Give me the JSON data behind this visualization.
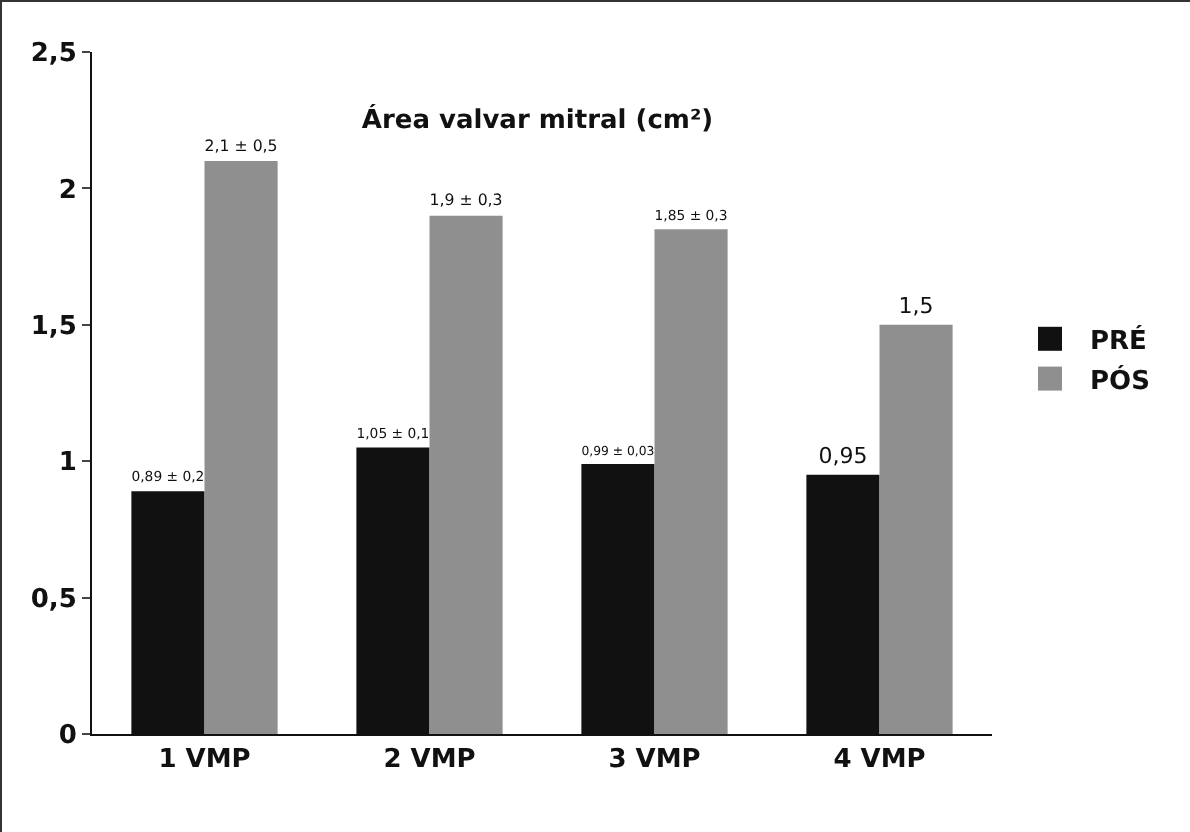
{
  "chart_data": {
    "type": "bar",
    "title": "Área valvar mitral (cm²)",
    "categories": [
      "1 VMP",
      "2 VMP",
      "3 VMP",
      "4 VMP"
    ],
    "series": [
      {
        "name": "PRÉ",
        "color": "#111111",
        "values": [
          0.89,
          1.05,
          0.99,
          0.95
        ],
        "value_labels": [
          "0,89 ± 0,2",
          "1,05 ± 0,1",
          "0,99 ± 0,03",
          "0,95"
        ]
      },
      {
        "name": "PÓS",
        "color": "#8f8f8f",
        "values": [
          2.1,
          1.9,
          1.85,
          1.5
        ],
        "value_labels": [
          "2,1 ± 0,5",
          "1,9 ± 0,3",
          "1,85 ± 0,3",
          "1,5"
        ]
      }
    ],
    "ylim": [
      0,
      2.5
    ],
    "yticks": [
      0,
      {
        "value": 0.5,
        "label": "0,5"
      },
      1,
      {
        "value": 1.5,
        "label": "1,5"
      },
      2,
      {
        "value": 2.5,
        "label": "2,5"
      }
    ],
    "grid": false,
    "legend": "right"
  }
}
